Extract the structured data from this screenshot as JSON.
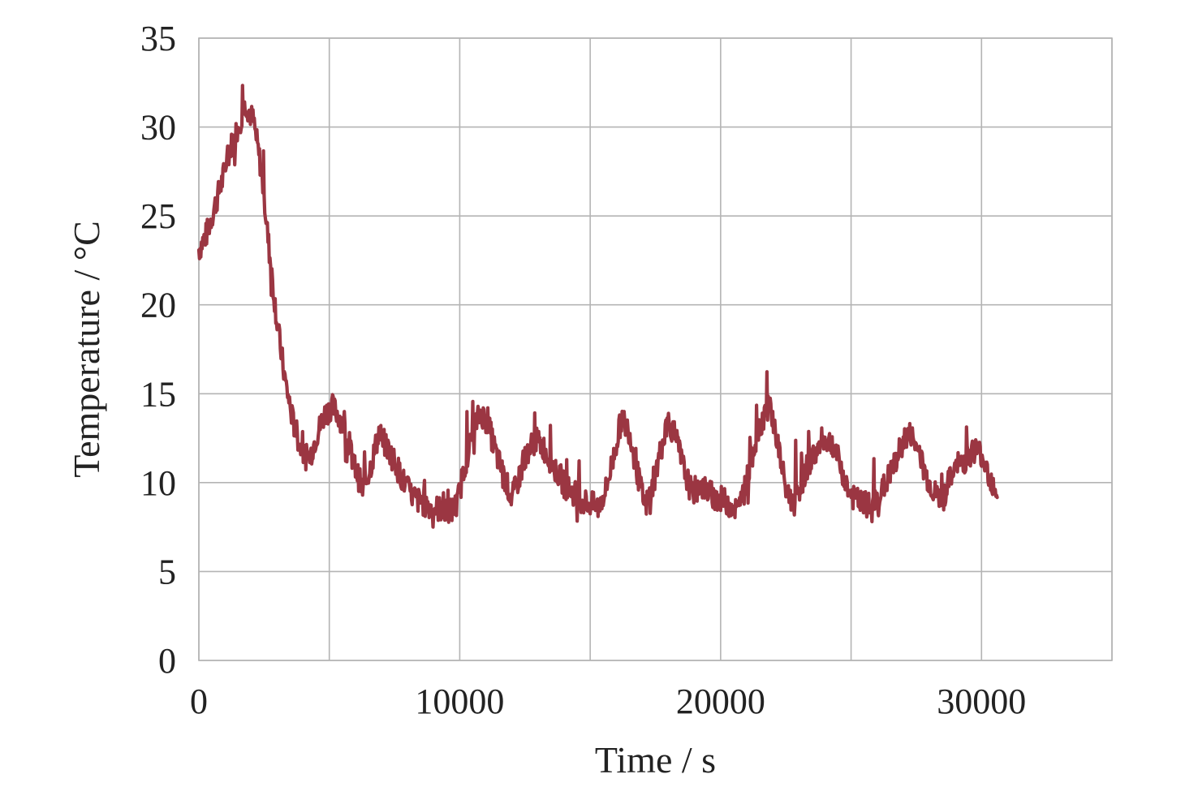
{
  "chart_data": {
    "type": "line",
    "xlabel": "Time / s",
    "ylabel": "Temperature / °C",
    "xlim": [
      0,
      35000
    ],
    "ylim": [
      0,
      35
    ],
    "x_ticks": [
      0,
      10000,
      20000,
      30000
    ],
    "x_tick_labels": [
      "0",
      "10000",
      "20000",
      "30000"
    ],
    "x_grid": [
      0,
      5000,
      10000,
      15000,
      20000,
      25000,
      30000,
      35000
    ],
    "y_ticks": [
      0,
      5,
      10,
      15,
      20,
      25,
      30,
      35
    ],
    "y_tick_labels": [
      "0",
      "5",
      "10",
      "15",
      "20",
      "25",
      "30",
      "35"
    ],
    "grid": true,
    "legend": "none",
    "series": [
      {
        "color": "#9b3642",
        "x": [
          0,
          300,
          600,
          900,
          1200,
          1500,
          1800,
          2100,
          2400,
          2700,
          3000,
          3300,
          3600,
          3900,
          4200,
          4500,
          4800,
          5100,
          5400,
          5700,
          6000,
          6300,
          6600,
          6900,
          7200,
          7500,
          7800,
          8100,
          8400,
          8700,
          9000,
          9300,
          9600,
          9900,
          10200,
          10500,
          10800,
          11100,
          11400,
          11700,
          12000,
          12300,
          12600,
          12900,
          13200,
          13500,
          13800,
          14100,
          14400,
          14700,
          15000,
          15300,
          15600,
          15900,
          16200,
          16500,
          16800,
          17100,
          17400,
          17700,
          18000,
          18300,
          18600,
          18900,
          19200,
          19500,
          19800,
          20100,
          20400,
          20700,
          21000,
          21300,
          21600,
          21900,
          22200,
          22500,
          22800,
          23100,
          23400,
          23700,
          24000,
          24300,
          24600,
          24900,
          25200,
          25500,
          25800,
          26100,
          26400,
          26700,
          27000,
          27300,
          27600,
          27900,
          28200,
          28500,
          28800,
          29100,
          29400,
          29700,
          30000,
          30300,
          30600
        ],
        "y": [
          23.1,
          24.0,
          25.5,
          27.0,
          28.8,
          30.0,
          31.3,
          30.3,
          27.5,
          23.0,
          19.0,
          15.8,
          13.5,
          12.0,
          11.2,
          12.6,
          13.8,
          14.3,
          13.7,
          12.3,
          10.8,
          9.5,
          11.0,
          12.8,
          12.0,
          11.2,
          10.2,
          9.4,
          9.0,
          8.8,
          8.6,
          8.5,
          8.3,
          8.8,
          11.0,
          12.8,
          14.0,
          13.2,
          11.6,
          10.3,
          9.1,
          10.4,
          11.8,
          12.4,
          12.0,
          11.2,
          10.3,
          9.7,
          9.4,
          9.0,
          8.8,
          8.6,
          9.6,
          11.5,
          13.6,
          12.9,
          10.6,
          8.6,
          9.8,
          11.8,
          13.5,
          12.4,
          10.7,
          9.4,
          9.9,
          9.5,
          9.2,
          9.0,
          8.8,
          8.4,
          10.1,
          12.2,
          13.6,
          14.3,
          12.1,
          9.6,
          8.8,
          10.0,
          11.2,
          11.8,
          12.4,
          12.2,
          10.9,
          9.5,
          9.0,
          8.8,
          8.6,
          9.3,
          10.2,
          11.1,
          12.4,
          12.7,
          11.6,
          10.3,
          9.4,
          9.0,
          10.2,
          11.0,
          11.3,
          11.9,
          11.6,
          10.4,
          9.5
        ]
      }
    ]
  }
}
